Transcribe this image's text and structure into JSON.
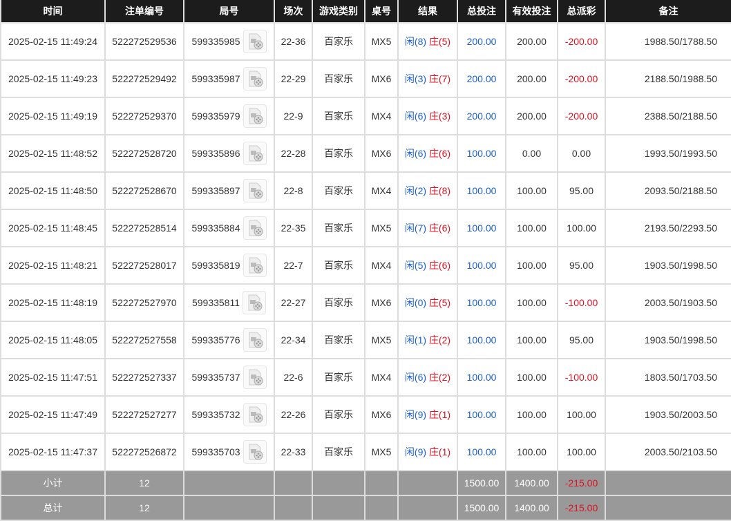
{
  "headers": [
    "时间",
    "注单编号",
    "局号",
    "场次",
    "游戏类别",
    "桌号",
    "结果",
    "总投注",
    "有效投注",
    "总派彩",
    "备注"
  ],
  "colors": {
    "header_bg": "#1c1c1c",
    "player": "#1a5fd6",
    "banker": "#e0101e",
    "footer_bg": "#999999"
  },
  "video_icon": "video-file-icon",
  "rows": [
    {
      "time": "2025-02-15 11:49:24",
      "bet_id": "522272529536",
      "round": "599335985",
      "shoe": "22-36",
      "game": "百家乐",
      "table": "MX5",
      "player": "闲(8)",
      "banker": "庄(5)",
      "total": "200.00",
      "valid": "200.00",
      "payout": "-200.00",
      "note": "1988.50/1788.50"
    },
    {
      "time": "2025-02-15 11:49:23",
      "bet_id": "522272529492",
      "round": "599335987",
      "shoe": "22-29",
      "game": "百家乐",
      "table": "MX6",
      "player": "闲(3)",
      "banker": "庄(7)",
      "total": "200.00",
      "valid": "200.00",
      "payout": "-200.00",
      "note": "2188.50/1988.50"
    },
    {
      "time": "2025-02-15 11:49:19",
      "bet_id": "522272529370",
      "round": "599335979",
      "shoe": "22-9",
      "game": "百家乐",
      "table": "MX4",
      "player": "闲(6)",
      "banker": "庄(3)",
      "total": "200.00",
      "valid": "200.00",
      "payout": "-200.00",
      "note": "2388.50/2188.50"
    },
    {
      "time": "2025-02-15 11:48:52",
      "bet_id": "522272528720",
      "round": "599335896",
      "shoe": "22-28",
      "game": "百家乐",
      "table": "MX6",
      "player": "闲(6)",
      "banker": "庄(6)",
      "total": "100.00",
      "valid": "0.00",
      "payout": "0.00",
      "note": "1993.50/1993.50"
    },
    {
      "time": "2025-02-15 11:48:50",
      "bet_id": "522272528670",
      "round": "599335897",
      "shoe": "22-8",
      "game": "百家乐",
      "table": "MX4",
      "player": "闲(2)",
      "banker": "庄(8)",
      "total": "100.00",
      "valid": "100.00",
      "payout": "95.00",
      "note": "2093.50/2188.50"
    },
    {
      "time": "2025-02-15 11:48:45",
      "bet_id": "522272528514",
      "round": "599335884",
      "shoe": "22-35",
      "game": "百家乐",
      "table": "MX5",
      "player": "闲(7)",
      "banker": "庄(6)",
      "total": "100.00",
      "valid": "100.00",
      "payout": "100.00",
      "note": "2193.50/2293.50"
    },
    {
      "time": "2025-02-15 11:48:21",
      "bet_id": "522272528017",
      "round": "599335819",
      "shoe": "22-7",
      "game": "百家乐",
      "table": "MX4",
      "player": "闲(5)",
      "banker": "庄(6)",
      "total": "100.00",
      "valid": "100.00",
      "payout": "95.00",
      "note": "1903.50/1998.50"
    },
    {
      "time": "2025-02-15 11:48:19",
      "bet_id": "522272527970",
      "round": "599335811",
      "shoe": "22-27",
      "game": "百家乐",
      "table": "MX6",
      "player": "闲(0)",
      "banker": "庄(5)",
      "total": "100.00",
      "valid": "100.00",
      "payout": "-100.00",
      "note": "2003.50/1903.50"
    },
    {
      "time": "2025-02-15 11:48:05",
      "bet_id": "522272527558",
      "round": "599335776",
      "shoe": "22-34",
      "game": "百家乐",
      "table": "MX5",
      "player": "闲(1)",
      "banker": "庄(2)",
      "total": "100.00",
      "valid": "100.00",
      "payout": "95.00",
      "note": "1903.50/1998.50"
    },
    {
      "time": "2025-02-15 11:47:51",
      "bet_id": "522272527337",
      "round": "599335737",
      "shoe": "22-6",
      "game": "百家乐",
      "table": "MX4",
      "player": "闲(6)",
      "banker": "庄(2)",
      "total": "100.00",
      "valid": "100.00",
      "payout": "-100.00",
      "note": "1803.50/1703.50"
    },
    {
      "time": "2025-02-15 11:47:49",
      "bet_id": "522272527277",
      "round": "599335732",
      "shoe": "22-26",
      "game": "百家乐",
      "table": "MX6",
      "player": "闲(9)",
      "banker": "庄(1)",
      "total": "100.00",
      "valid": "100.00",
      "payout": "100.00",
      "note": "1903.50/2003.50"
    },
    {
      "time": "2025-02-15 11:47:37",
      "bet_id": "522272526872",
      "round": "599335703",
      "shoe": "22-33",
      "game": "百家乐",
      "table": "MX5",
      "player": "闲(9)",
      "banker": "庄(1)",
      "total": "100.00",
      "valid": "100.00",
      "payout": "100.00",
      "note": "2003.50/2103.50"
    }
  ],
  "subtotal": {
    "label": "小计",
    "count": "12",
    "total": "1500.00",
    "valid": "1400.00",
    "payout": "-215.00"
  },
  "grandtotal": {
    "label": "总计",
    "count": "12",
    "total": "1500.00",
    "valid": "1400.00",
    "payout": "-215.00"
  }
}
